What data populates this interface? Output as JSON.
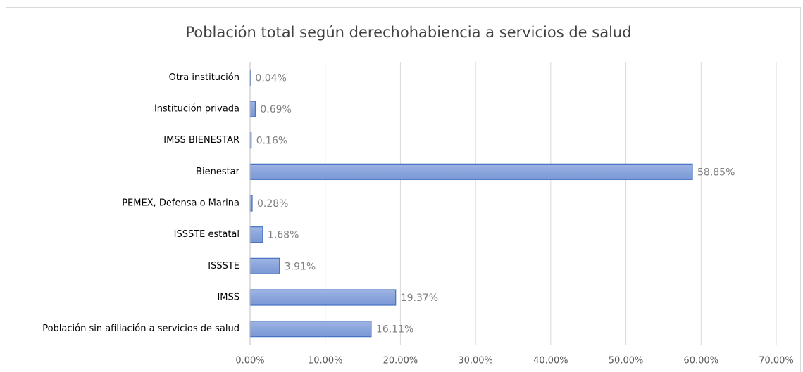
{
  "chart_data": {
    "type": "bar",
    "orientation": "horizontal",
    "title": "Población total según derechohabiencia a servicios de salud",
    "categories": [
      "Otra institución",
      "Institución privada",
      "IMSS BIENESTAR",
      "Bienestar",
      "PEMEX, Defensa o Marina",
      "ISSSTE estatal",
      "ISSSTE",
      "IMSS",
      "Población sin afiliación a servicios de salud"
    ],
    "values": [
      0.04,
      0.69,
      0.16,
      58.85,
      0.28,
      1.68,
      3.91,
      19.37,
      16.11
    ],
    "value_labels": [
      "0.04%",
      "0.69%",
      "0.16%",
      "58.85%",
      "0.28%",
      "1.68%",
      "3.91%",
      "19.37%",
      "16.11%"
    ],
    "color": "#4472c4",
    "xlim": [
      0,
      70
    ],
    "xticks": [
      {
        "value": 0,
        "label": "0.00%"
      },
      {
        "value": 10,
        "label": "10.00%"
      },
      {
        "value": 20,
        "label": "20.00%"
      },
      {
        "value": 30,
        "label": "30.00%"
      },
      {
        "value": 40,
        "label": "40.00%"
      },
      {
        "value": 50,
        "label": "50.00%"
      },
      {
        "value": 60,
        "label": "60.00%"
      },
      {
        "value": 70,
        "label": "70.00%"
      }
    ],
    "grid": true
  }
}
